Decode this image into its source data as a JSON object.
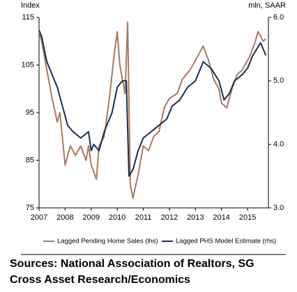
{
  "chart_data": {
    "type": "line",
    "y_label": "Index",
    "y2_label": "mln, SAAR",
    "xlim": [
      2007,
      2015.8
    ],
    "xticks": [
      2007,
      2008,
      2009,
      2010,
      2011,
      2012,
      2013,
      2014,
      2015
    ],
    "ylim": [
      75,
      115
    ],
    "yticks": [
      75,
      85,
      95,
      105,
      115
    ],
    "y2lim": [
      3,
      6
    ],
    "y2ticks": [
      {
        "value": 3,
        "label": "3.0"
      },
      {
        "value": 4,
        "label": "4.0"
      },
      {
        "value": 5,
        "label": "5.0"
      },
      {
        "value": 6,
        "label": "6.0"
      }
    ],
    "series": [
      {
        "name": "Lagged Pending Home Sales (lhs)",
        "color": "#a87a5e",
        "axis": "y",
        "x": [
          2007.0,
          2007.1,
          2007.3,
          2007.5,
          2007.7,
          2007.8,
          2008.0,
          2008.2,
          2008.4,
          2008.6,
          2008.8,
          2008.9,
          2009.0,
          2009.2,
          2009.3,
          2009.5,
          2009.7,
          2009.9,
          2010.0,
          2010.1,
          2010.3,
          2010.4,
          2010.5,
          2010.6,
          2010.8,
          2011.0,
          2011.2,
          2011.4,
          2011.6,
          2011.8,
          2012.0,
          2012.3,
          2012.5,
          2012.8,
          2013.0,
          2013.3,
          2013.5,
          2013.7,
          2013.9,
          2014.0,
          2014.2,
          2014.4,
          2014.6,
          2014.8,
          2015.0,
          2015.1,
          2015.3,
          2015.4,
          2015.5,
          2015.6,
          2015.7
        ],
        "values": [
          112,
          110,
          104,
          98,
          93,
          95,
          84,
          88,
          86,
          88,
          85,
          88,
          84,
          81,
          88,
          90,
          98,
          108,
          112,
          105,
          99,
          114,
          80,
          77,
          82,
          88,
          87,
          90,
          91,
          96,
          98,
          99,
          102,
          104,
          106,
          109,
          106,
          102,
          100,
          97,
          96,
          100,
          103,
          104,
          106,
          107,
          110,
          112,
          111,
          110,
          110.5
        ]
      },
      {
        "name": "Lagged PHS Model Estimate (rhs)",
        "color": "#1a2e52",
        "axis": "y2",
        "x": [
          2007.0,
          2007.1,
          2007.3,
          2007.5,
          2007.7,
          2007.9,
          2008.1,
          2008.3,
          2008.6,
          2008.9,
          2009.0,
          2009.1,
          2009.3,
          2009.5,
          2009.8,
          2010.0,
          2010.2,
          2010.35,
          2010.45,
          2010.6,
          2010.8,
          2011.0,
          2011.3,
          2011.6,
          2011.9,
          2012.1,
          2012.4,
          2012.7,
          2013.0,
          2013.3,
          2013.6,
          2013.9,
          2014.1,
          2014.3,
          2014.5,
          2014.8,
          2015.0,
          2015.2,
          2015.5,
          2015.7
        ],
        "values": [
          5.8,
          5.7,
          5.3,
          5.1,
          4.9,
          4.6,
          4.3,
          4.2,
          4.1,
          4.2,
          3.9,
          4.0,
          3.9,
          4.2,
          4.5,
          4.9,
          5.0,
          5.0,
          3.5,
          3.6,
          3.9,
          4.1,
          4.2,
          4.3,
          4.4,
          4.6,
          4.7,
          4.9,
          5.0,
          5.3,
          5.2,
          5.0,
          4.7,
          4.8,
          5.0,
          5.1,
          5.2,
          5.4,
          5.6,
          5.4
        ]
      }
    ],
    "source": [
      "Sources: National Association of Realtors, SG",
      "Cross Asset Research/Economics"
    ]
  }
}
